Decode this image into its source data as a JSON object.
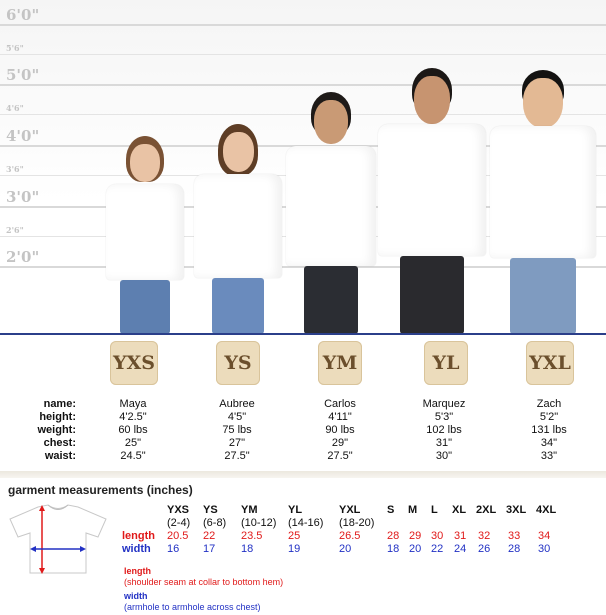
{
  "height_marks": [
    "6'0\"",
    "5'6\"",
    "5'0\"",
    "4'6\"",
    "4'0\"",
    "3'6\"",
    "3'0\"",
    "2'6\"",
    "2'0\""
  ],
  "sizes": [
    "YXS",
    "YS",
    "YM",
    "YL",
    "YXL"
  ],
  "stat_labels": {
    "name": "name:",
    "height": "height:",
    "weight": "weight:",
    "chest": "chest:",
    "waist": "waist:"
  },
  "kids": [
    {
      "name": "Maya",
      "height": "4'2.5\"",
      "weight": "60 lbs",
      "chest": "25\"",
      "waist": "24.5\""
    },
    {
      "name": "Aubree",
      "height": "4'5\"",
      "weight": "75 lbs",
      "chest": "27\"",
      "waist": "27.5\""
    },
    {
      "name": "Carlos",
      "height": "4'11\"",
      "weight": "90 lbs",
      "chest": "29\"",
      "waist": "27.5\""
    },
    {
      "name": "Marquez",
      "height": "5'3\"",
      "weight": "102 lbs",
      "chest": "31\"",
      "waist": "30\""
    },
    {
      "name": "Zach",
      "height": "5'2\"",
      "weight": "131 lbs",
      "chest": "34\"",
      "waist": "33\""
    }
  ],
  "garment": {
    "title": "garment measurements (inches)",
    "length_label": "length",
    "width_label": "width",
    "youth_sizes": [
      {
        "size": "YXS",
        "range": "(2-4)",
        "length": "20.5",
        "width": "16"
      },
      {
        "size": "YS",
        "range": "(6-8)",
        "length": "22",
        "width": "17"
      },
      {
        "size": "YM",
        "range": "(10-12)",
        "length": "23.5",
        "width": "18"
      },
      {
        "size": "YL",
        "range": "(14-16)",
        "length": "25",
        "width": "19"
      },
      {
        "size": "YXL",
        "range": "(18-20)",
        "length": "26.5",
        "width": "20"
      }
    ],
    "adult_sizes": [
      {
        "size": "S",
        "length": "28",
        "width": "18"
      },
      {
        "size": "M",
        "length": "29",
        "width": "20"
      },
      {
        "size": "L",
        "length": "30",
        "width": "22"
      },
      {
        "size": "XL",
        "length": "31",
        "width": "24"
      },
      {
        "size": "2XL",
        "length": "32",
        "width": "26"
      },
      {
        "size": "3XL",
        "length": "33",
        "width": "28"
      },
      {
        "size": "4XL",
        "length": "34",
        "width": "30"
      }
    ],
    "notes": {
      "length_title": "length",
      "length_desc": "(shoulder seam at collar to bottom hem)",
      "width_title": "width",
      "width_desc": "(armhole to armhole across chest)"
    }
  },
  "colors": {
    "length": "#e01a1a",
    "width": "#2231c4",
    "badge_bg": "#ecdcbc",
    "floor": "#2b3f8a"
  }
}
